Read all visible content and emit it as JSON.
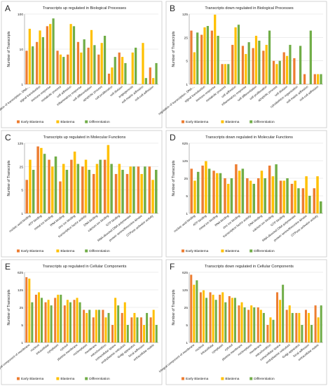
{
  "colors": {
    "early": "#ed7d31",
    "blastema": "#ffc000",
    "diff": "#70ad47",
    "grid": "#d9d9d9",
    "axis": "#8c8c8c"
  },
  "chart_data": [
    {
      "type": "bar",
      "panel_letter": "A",
      "title": "Transcripts up regulated in Biological Processes",
      "ylabel": "Number of Transcripts",
      "yscale": "log",
      "ylim": [
        1,
        100
      ],
      "yticks": [
        1,
        10,
        100
      ],
      "legend_position": "bottom",
      "categories": [
        "regulation of transcription, DNA-...",
        "signal transduction",
        "immune response",
        "metabolic process",
        "cell adhesion",
        "inflammatory response",
        "cell differentiation",
        "apoptotic process",
        "cell proliferation",
        "cell division",
        "angiogenesis",
        "cell-matrix adhesion",
        "cell-cell adhesion"
      ],
      "series": [
        {
          "name": "Early Blastema",
          "values": [
            9,
            16,
            45,
            9,
            7,
            16,
            11,
            7,
            2,
            8,
            1,
            1,
            3
          ]
        },
        {
          "name": "Blastema",
          "values": [
            38,
            34,
            52,
            7,
            52,
            8,
            35,
            15,
            3,
            6,
            8,
            15,
            1.5
          ]
        },
        {
          "name": "Differentiation",
          "values": [
            12,
            22,
            75,
            6,
            45,
            19,
            13,
            24,
            6,
            4,
            11,
            1.5,
            4
          ]
        }
      ]
    },
    {
      "type": "bar",
      "panel_letter": "B",
      "title": "Transcripts down regulated in Biological Processes",
      "ylabel": "Number of Transcripts",
      "yscale": "log",
      "ylim": [
        1,
        125
      ],
      "yticks": [
        1,
        5,
        25,
        125
      ],
      "legend_position": "bottom",
      "categories": [
        "regulation of transcription, DNA-...",
        "signal transduction",
        "immune response",
        "metabolic process",
        "cell adhesion",
        "inflammatory response",
        "cell differentiation",
        "cell proliferation",
        "apoptotic process",
        "cell division",
        "cytoskeleton organization",
        "cell-matrix adhesion",
        "cell-cell adhesion"
      ],
      "series": [
        {
          "name": "Early Blastema",
          "values": [
            40,
            30,
            40,
            4,
            15,
            14,
            12,
            10,
            5,
            9,
            6,
            2,
            2
          ]
        },
        {
          "name": "Blastema",
          "values": [
            9,
            50,
            120,
            4,
            50,
            8,
            28,
            15,
            4,
            7,
            1,
            1,
            2
          ]
        },
        {
          "name": "Differentiation",
          "values": [
            35,
            55,
            28,
            4,
            60,
            18,
            20,
            40,
            5,
            15,
            14,
            40,
            2
          ]
        }
      ]
    },
    {
      "type": "bar",
      "panel_letter": "C",
      "title": "Transcripts up regulated in Molecular Functions",
      "ylabel": "Number of Transcripts",
      "yscale": "log",
      "ylim": [
        1,
        125
      ],
      "yticks": [
        1,
        5,
        25,
        125
      ],
      "legend_position": "bottom",
      "categories": [
        "nucleic acid binding",
        "ATP binding",
        "metal ion binding",
        "RNA binding",
        "zinc ion binding",
        "transcription factor activity",
        "DNA binding",
        "calcium ion binding",
        "GTP binding",
        "RNA-directed DNA polymerase",
        "protein serine/threonine kinase",
        "GTPase activator activity"
      ],
      "series": [
        {
          "name": "Early Blastema",
          "values": [
            10,
            100,
            40,
            9,
            40,
            25,
            15,
            40,
            15,
            15,
            25,
            25
          ]
        },
        {
          "name": "Blastema",
          "values": [
            40,
            90,
            25,
            30,
            70,
            40,
            30,
            110,
            30,
            25,
            15,
            10
          ]
        },
        {
          "name": "Differentiation",
          "values": [
            20,
            60,
            50,
            20,
            30,
            20,
            40,
            30,
            20,
            25,
            25,
            20
          ]
        }
      ]
    },
    {
      "type": "bar",
      "panel_letter": "D",
      "title": "Transcripts down regulated in Molecular Functions",
      "ylabel": "Number of Transcripts",
      "yscale": "log",
      "ylim": [
        1,
        625
      ],
      "yticks": [
        1,
        5,
        25,
        125,
        625
      ],
      "legend_position": "bottom",
      "categories": [
        "nucleic acid binding",
        "ATP binding",
        "metal ion binding",
        "RNA binding",
        "zinc ion binding",
        "transcription factor activity",
        "DNA binding",
        "calcium ion binding",
        "GTP binding",
        "RNA-directed DNA polymerase",
        "protein serine/threonine kinase",
        "GTPase activator activity"
      ],
      "series": [
        {
          "name": "Early Blastema",
          "values": [
            60,
            80,
            50,
            25,
            90,
            25,
            25,
            80,
            20,
            15,
            10,
            10
          ]
        },
        {
          "name": "Blastema",
          "values": [
            20,
            120,
            40,
            15,
            50,
            20,
            50,
            30,
            20,
            20,
            30,
            30
          ]
        },
        {
          "name": "Differentiation",
          "values": [
            45,
            60,
            40,
            25,
            60,
            15,
            25,
            90,
            25,
            10,
            5,
            3
          ]
        }
      ]
    },
    {
      "type": "bar",
      "panel_letter": "E",
      "title": "Transcripts up regulated in Cellular Components",
      "ylabel": "Number of Transcripts",
      "yscale": "log",
      "ylim": [
        1,
        625
      ],
      "yticks": [
        1,
        5,
        25,
        125,
        625
      ],
      "legend_position": "bottom",
      "categories": [
        "integral component of membrane",
        "nucleus",
        "intracellular",
        "cytoplasm",
        "cytosol",
        "plasma membrane",
        "nucleoplasm",
        "membrane",
        "mitochondrion",
        "extracellular space",
        "endoplasmic reticulum",
        "Golgi apparatus",
        "focal adhesion",
        "extracellular matrix"
      ],
      "series": [
        {
          "name": "Early Blastema",
          "values": [
            400,
            80,
            40,
            60,
            30,
            50,
            20,
            10,
            20,
            5,
            15,
            10,
            10,
            10
          ]
        },
        {
          "name": "Blastema",
          "values": [
            350,
            100,
            50,
            80,
            50,
            60,
            15,
            20,
            10,
            60,
            40,
            15,
            5,
            20
          ]
        },
        {
          "name": "Differentiation",
          "values": [
            40,
            60,
            30,
            80,
            40,
            40,
            20,
            20,
            15,
            30,
            5,
            10,
            15,
            5
          ]
        }
      ]
    },
    {
      "type": "bar",
      "panel_letter": "F",
      "title": "Transcripts down regulated in Cellular Components",
      "ylabel": "Number of Transcripts",
      "yscale": "log",
      "ylim": [
        1,
        625
      ],
      "yticks": [
        1,
        5,
        25,
        125,
        625
      ],
      "legend_position": "bottom",
      "categories": [
        "integral component of membrane",
        "nucleus",
        "intracellular",
        "cytoplasm",
        "cytosol",
        "plasma membrane",
        "nucleoplasm",
        "membrane",
        "mitochondrion",
        "extracellular space",
        "endoplasmic reticulum",
        "Golgi apparatus",
        "focal adhesion",
        "extracellular matrix"
      ],
      "series": [
        {
          "name": "Early Blastema",
          "values": [
            500,
            100,
            100,
            80,
            70,
            30,
            20,
            25,
            5,
            100,
            20,
            15,
            20,
            30
          ]
        },
        {
          "name": "Blastema",
          "values": [
            200,
            120,
            80,
            100,
            60,
            40,
            30,
            20,
            10,
            50,
            30,
            15,
            15,
            10
          ]
        },
        {
          "name": "Differentiation",
          "values": [
            300,
            60,
            50,
            40,
            60,
            25,
            25,
            15,
            8,
            200,
            15,
            5,
            5,
            30
          ]
        }
      ]
    }
  ]
}
